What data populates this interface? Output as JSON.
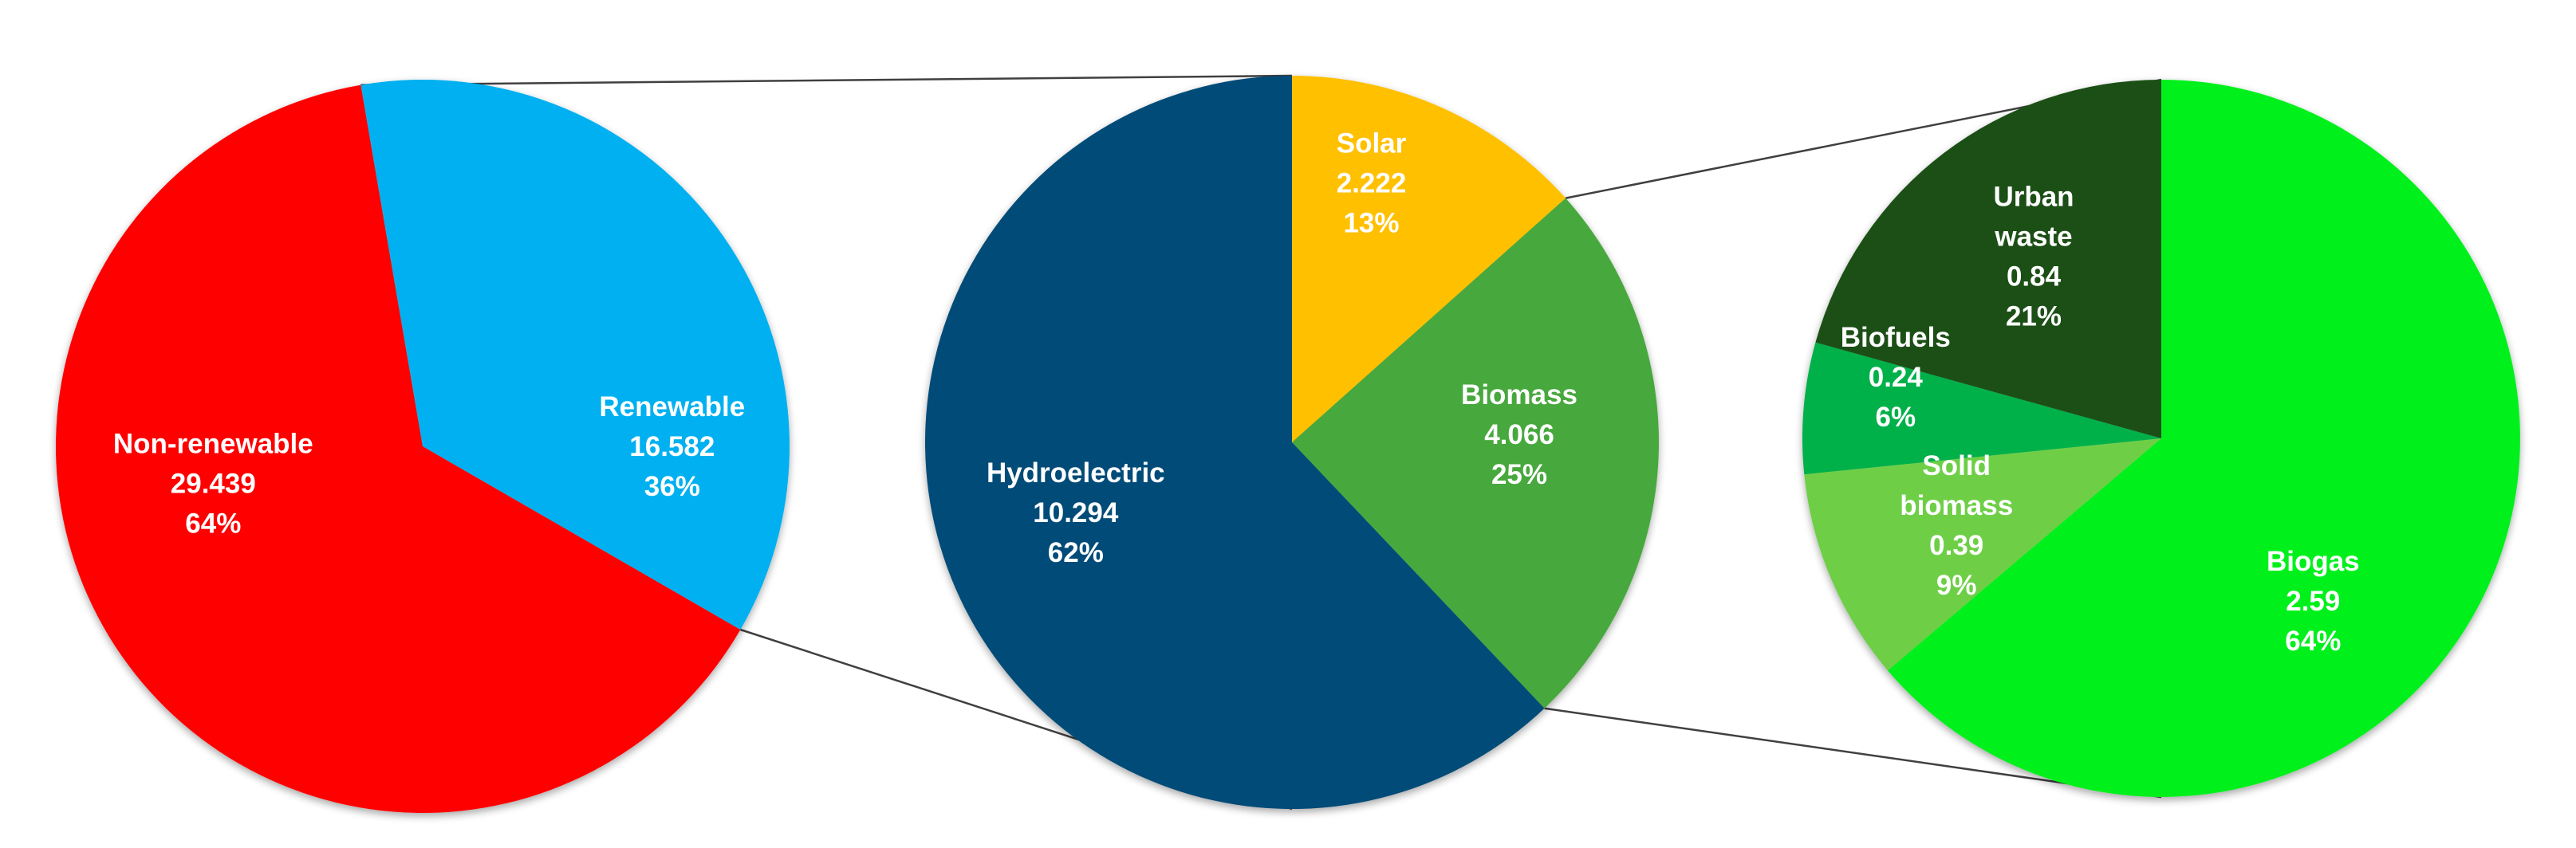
{
  "chart_data": [
    {
      "type": "pie",
      "slices": [
        {
          "label": "Non-renewable",
          "value": 29.439,
          "value_text": "29.439",
          "percent_text": "64%",
          "color": "#ff0000"
        },
        {
          "label": "Renewable",
          "value": 16.582,
          "value_text": "16.582",
          "percent_text": "36%",
          "color": "#00b0f0"
        }
      ]
    },
    {
      "type": "pie",
      "slices": [
        {
          "label": "Solar",
          "value": 2.222,
          "value_text": "2.222",
          "percent_text": "13%",
          "color": "#ffc000"
        },
        {
          "label": "Biomass",
          "value": 4.066,
          "value_text": "4.066",
          "percent_text": "25%",
          "color": "#47a83c"
        },
        {
          "label": "Hydroelectric",
          "value": 10.294,
          "value_text": "10.294",
          "percent_text": "62%",
          "color": "#004b78"
        }
      ]
    },
    {
      "type": "pie",
      "slices": [
        {
          "label": "Biogas",
          "value": 2.59,
          "value_text": "2.59",
          "percent_text": "64%",
          "color": "#00f01e"
        },
        {
          "label": "Solid biomass",
          "value": 0.39,
          "value_text": "0.39",
          "percent_text": "9%",
          "color": "#6ecf46"
        },
        {
          "label": "Biofuels",
          "value": 0.24,
          "value_text": "0.24",
          "percent_text": "6%",
          "color": "#00b04a"
        },
        {
          "label": "Urban waste",
          "value": 0.84,
          "value_text": "0.84",
          "percent_text": "21%",
          "color": "#1f4f17"
        }
      ]
    }
  ]
}
